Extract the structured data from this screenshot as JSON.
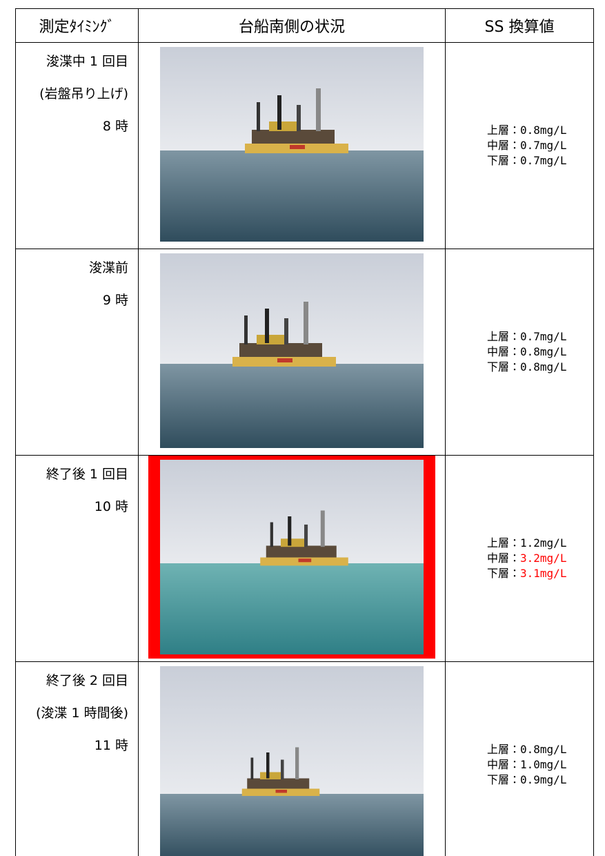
{
  "table": {
    "header": [
      "測定ﾀｲﾐﾝｸﾞ",
      "台船南側の状況",
      "SS 換算値"
    ],
    "rows": [
      {
        "timing": [
          "浚渫中 1 回目",
          "(岩盤吊り上げ)",
          "8 時"
        ],
        "ss": [
          {
            "label": "上層：",
            "value": "0.8mg/L"
          },
          {
            "label": "中層：",
            "value": "0.7mg/L"
          },
          {
            "label": "下層：",
            "value": "0.7mg/L"
          }
        ]
      },
      {
        "timing": [
          "浚渫前",
          "9 時"
        ],
        "ss": [
          {
            "label": "上層：",
            "value": "0.7mg/L"
          },
          {
            "label": "中層：",
            "value": "0.8mg/L"
          },
          {
            "label": "下層：",
            "value": "0.8mg/L"
          }
        ]
      },
      {
        "timing": [
          "終了後 1 回目",
          "10 時"
        ],
        "photo_frame_color": "#ff0000",
        "ss": [
          {
            "label": "上層：",
            "value": "1.2mg/L"
          },
          {
            "label": "中層：",
            "value": "3.2mg/L",
            "color": "#ff0000"
          },
          {
            "label": "下層：",
            "value": "3.1mg/L",
            "color": "#ff0000"
          }
        ]
      },
      {
        "timing": [
          "終了後 2 回目",
          "(浚渫 1 時間後)",
          "11 時"
        ],
        "ss": [
          {
            "label": "上層：",
            "value": "0.8mg/L"
          },
          {
            "label": "中層：",
            "value": "1.0mg/L"
          },
          {
            "label": "下層：",
            "value": "0.9mg/L"
          }
        ]
      }
    ]
  }
}
